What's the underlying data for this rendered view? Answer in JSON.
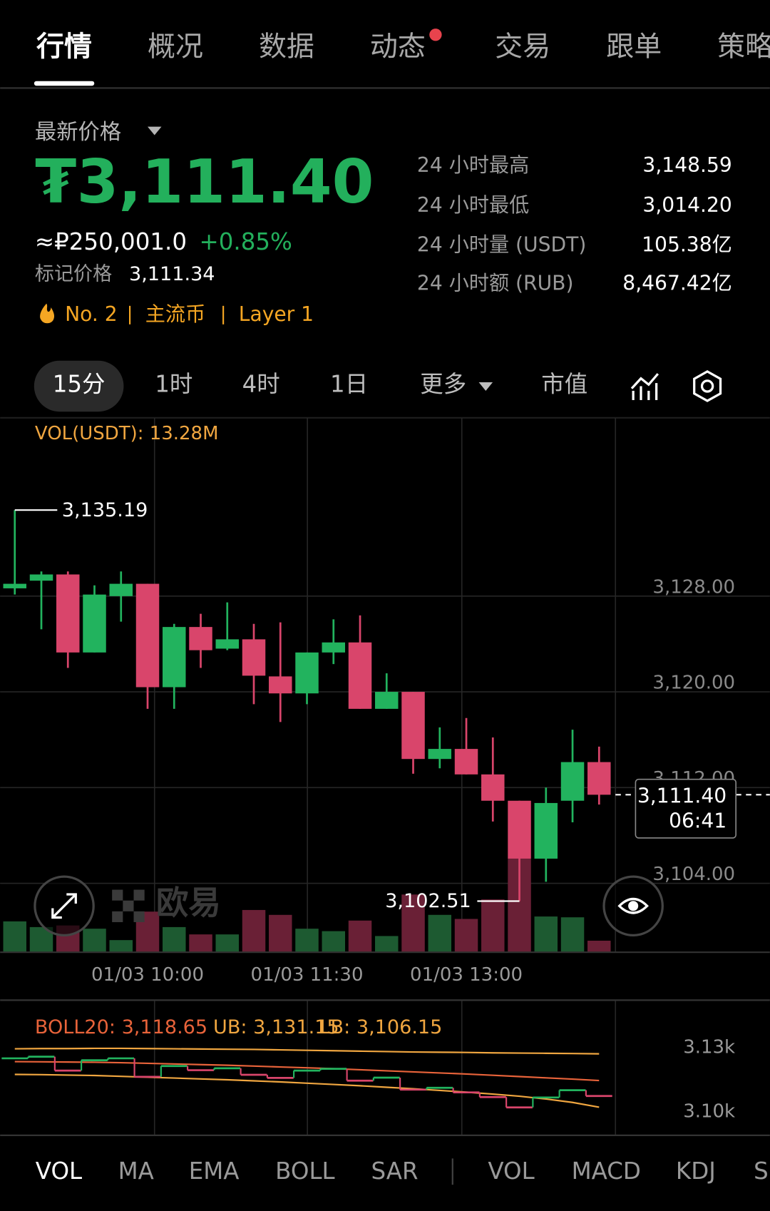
{
  "tabs": [
    "行情",
    "概况",
    "数据",
    "动态",
    "交易",
    "跟单",
    "策略"
  ],
  "header": {
    "price_label": "最新价格",
    "price": "₮3,111.40",
    "rub": "≈₽250,001.0",
    "change": "+0.85%",
    "mark_label": "标记价格",
    "mark_price": "3,111.34",
    "rank": "No. 2",
    "tag1": "主流币",
    "tag2": "Layer 1"
  },
  "stats": [
    [
      "24 小时最高",
      "3,148.59"
    ],
    [
      "24 小时最低",
      "3,014.20"
    ],
    [
      "24 小时量 (USDT)",
      "105.38亿"
    ],
    [
      "24 小时额 (RUB)",
      "8,467.42亿"
    ]
  ],
  "intervals": [
    "15分",
    "1时",
    "4时",
    "1日",
    "更多",
    "市值"
  ],
  "watermark": "欧易",
  "chart_data": [
    {
      "type": "candlestick",
      "vol_label": "VOL(USDT): 13.28M",
      "categories": [
        null,
        null,
        null,
        null,
        null,
        "01/03 10:00",
        null,
        null,
        null,
        null,
        null,
        "01/03 11:30",
        null,
        null,
        null,
        null,
        null,
        "01/03 13:00",
        null,
        null,
        null,
        null,
        null
      ],
      "open": [
        3128.65,
        3129.29,
        3129.81,
        3123.29,
        3128.0,
        3129.03,
        3120.39,
        3125.42,
        3123.61,
        3124.39,
        3121.29,
        3119.87,
        3123.29,
        3124.13,
        3118.58,
        3120.0,
        3114.39,
        3115.23,
        3113.1,
        3110.9,
        3106.06,
        3110.9,
        3114.13
      ],
      "high": [
        3135.19,
        3130.06,
        3130.06,
        3128.9,
        3130.06,
        3129.03,
        3125.68,
        3126.52,
        3127.48,
        3125.68,
        3125.81,
        3123.29,
        3126.06,
        3126.39,
        3121.55,
        3120.0,
        3117.03,
        3117.81,
        3116.19,
        3110.9,
        3112.0,
        3116.84,
        3115.42
      ],
      "low": [
        3128.13,
        3125.23,
        3122.0,
        3123.29,
        3125.87,
        3118.58,
        3118.58,
        3122.0,
        3123.48,
        3118.97,
        3117.48,
        3118.97,
        3122.32,
        3118.58,
        3118.58,
        3113.16,
        3113.61,
        3113.1,
        3109.16,
        3102.51,
        3104.13,
        3109.1,
        3110.58
      ],
      "close": [
        3129.03,
        3129.81,
        3123.29,
        3128.13,
        3129.03,
        3120.39,
        3125.42,
        3123.48,
        3124.39,
        3121.35,
        3119.87,
        3123.29,
        3124.13,
        3118.58,
        3120.0,
        3114.39,
        3115.23,
        3113.1,
        3110.9,
        3106.06,
        3110.71,
        3114.13,
        3111.4
      ],
      "volume": [
        37,
        30,
        32,
        28,
        14,
        49,
        30,
        21,
        21,
        51,
        45,
        28,
        25,
        38,
        19,
        70,
        45,
        40,
        64,
        114,
        43,
        42,
        13.28
      ],
      "up_color": "#22b35e",
      "down_color": "#d9456b",
      "vol_up_color": "#1d5a31",
      "vol_down_color": "#6a2036",
      "ylim": [
        3098.3,
        3142.9
      ],
      "yticks": [
        {
          "value": 3128,
          "label": "3,128.00"
        },
        {
          "value": 3120,
          "label": "3,120.00"
        },
        {
          "value": 3112,
          "label": "3,112.00"
        },
        {
          "value": 3104,
          "label": "3,104.00"
        }
      ],
      "grid": true,
      "max_annotation": "3,135.19",
      "min_annotation": "3,102.51",
      "last_price_label": "3,111.40",
      "countdown": "06:41"
    },
    {
      "type": "line",
      "series": [
        {
          "name": "BOLL20: 3,118.65",
          "color": "#e8633a",
          "values": [
            3127.5,
            3127.4,
            3127.3,
            3127.2,
            3127.0,
            3126.7,
            3126.4,
            3126.1,
            3125.8,
            3125.4,
            3125.0,
            3124.6,
            3124.2,
            3123.7,
            3123.2,
            3122.7,
            3122.2,
            3121.7,
            3121.1,
            3120.5,
            3119.9,
            3119.3,
            3118.65
          ]
        },
        {
          "name": "UB: 3,131.15",
          "color": "#f0a640",
          "values": [
            3133.5,
            3133.6,
            3133.6,
            3133.7,
            3133.7,
            3133.6,
            3133.5,
            3133.4,
            3133.3,
            3133.2,
            3133.0,
            3132.8,
            3132.6,
            3132.4,
            3132.2,
            3132.0,
            3131.9,
            3131.8,
            3131.6,
            3131.5,
            3131.4,
            3131.3,
            3131.15
          ]
        },
        {
          "name": "LB: 3,106.15",
          "color": "#f0a640",
          "values": [
            3121.5,
            3121.4,
            3121.2,
            3121.0,
            3120.6,
            3120.2,
            3119.8,
            3119.4,
            3119.0,
            3118.5,
            3118.0,
            3117.4,
            3116.8,
            3116.2,
            3115.5,
            3114.8,
            3114.0,
            3113.2,
            3112.3,
            3111.3,
            3110.0,
            3108.4,
            3106.15
          ]
        }
      ],
      "ylim": [
        3093,
        3140
      ],
      "yticks": [
        {
          "value": 3130,
          "label": "3.13k"
        },
        {
          "value": 3100,
          "label": "3.10k"
        }
      ]
    }
  ],
  "indicator_tabs": [
    "VOL",
    "MA",
    "EMA",
    "BOLL",
    "SAR",
    "VOL",
    "MACD",
    "KDJ",
    "SI"
  ]
}
